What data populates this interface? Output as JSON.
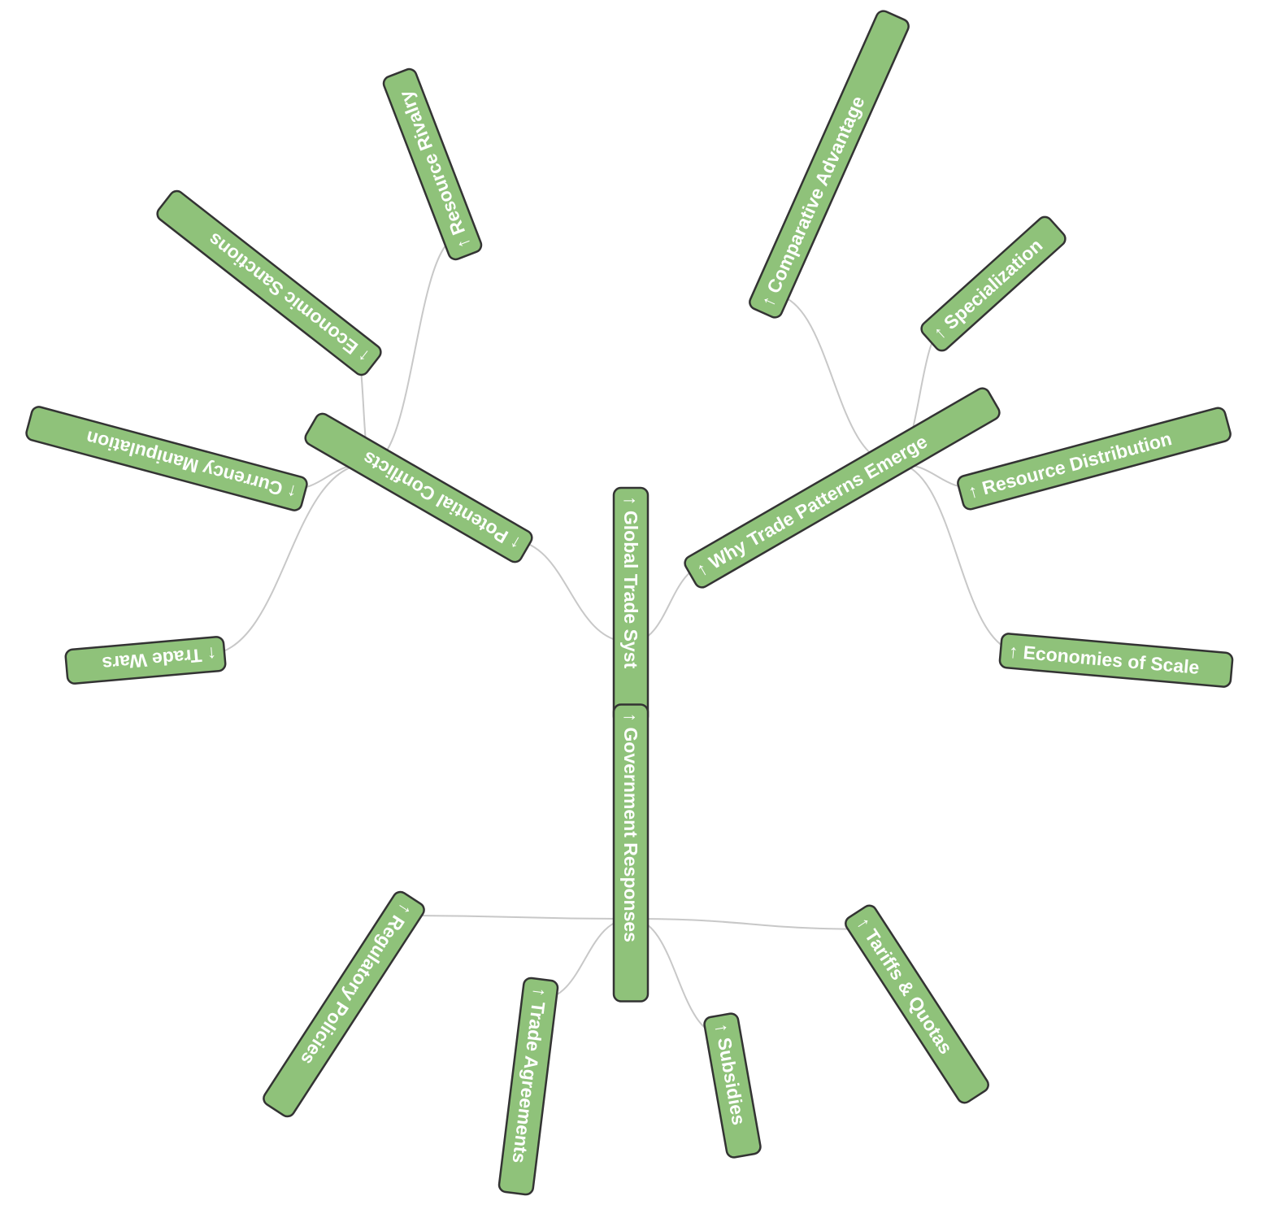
{
  "diagram": {
    "type": "mind-map",
    "node_fill": "#8fc27a",
    "node_stroke": "#333333",
    "link_color": "#c8c8c8",
    "nodes": [
      {
        "id": "root",
        "label": "↑ Global Trade Syst",
        "parent": null
      },
      {
        "id": "why",
        "label": "↑ Why Trade Patterns Emerge",
        "parent": "root"
      },
      {
        "id": "comparative",
        "label": "↑ Comparative Advantage",
        "parent": "why"
      },
      {
        "id": "specialization",
        "label": "↑ Specialization",
        "parent": "why"
      },
      {
        "id": "resource-distribution",
        "label": "↑ Resource Distribution",
        "parent": "why"
      },
      {
        "id": "economies",
        "label": "↑ Economies of Scale",
        "parent": "why"
      },
      {
        "id": "conflicts",
        "label": "↑ Potential Conflicts",
        "parent": "root"
      },
      {
        "id": "rivalry",
        "label": "↑ Resource Rivalry",
        "parent": "conflicts"
      },
      {
        "id": "sanctions",
        "label": "↑ Economic Sanctions",
        "parent": "conflicts"
      },
      {
        "id": "currency",
        "label": "↑ Currency Manipulation",
        "parent": "conflicts"
      },
      {
        "id": "tradewars",
        "label": "↑ Trade Wars",
        "parent": "conflicts"
      },
      {
        "id": "government",
        "label": "↑ Government Responses",
        "parent": "root"
      },
      {
        "id": "regulatory",
        "label": "↑ Regulatory Policies",
        "parent": "government"
      },
      {
        "id": "agreements",
        "label": "↑ Trade Agreements",
        "parent": "government"
      },
      {
        "id": "subsidies",
        "label": "↑ Subsidies",
        "parent": "government"
      },
      {
        "id": "tariffs",
        "label": "↑ Tariffs & Quotas",
        "parent": "government"
      }
    ]
  }
}
